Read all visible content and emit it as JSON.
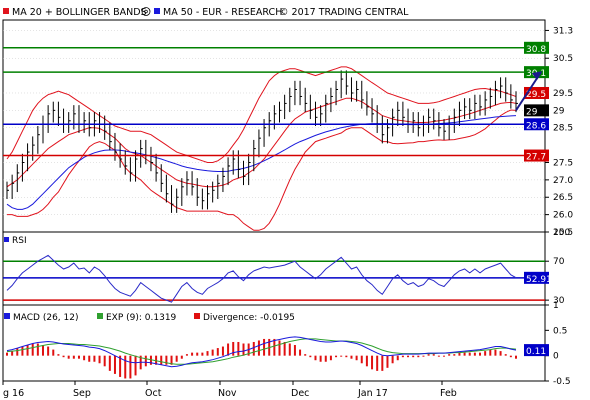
{
  "header": {
    "legend_label": "MA 20 + BOLLINGER BANDS",
    "ma50_label": "MA 50 - EUR - RESEARCH",
    "copyright": "© 2017 TRADING CENTRAL"
  },
  "colors": {
    "price": "#000000",
    "bollinger": "#e0141e",
    "ma50": "#1a1adc",
    "green": "#008000",
    "blue": "#0000c8",
    "red": "#d40000",
    "rsi": "#2a2ac8",
    "macd": "#1a1adc",
    "exp": "#30a030",
    "divergence": "#e01010",
    "grid": "#c8c8c8",
    "axis": "#000000"
  },
  "chart_data": [
    {
      "type": "ohlc",
      "panel": "price",
      "ylim": [
        25.5,
        31.6
      ],
      "yticks": [
        "31.3",
        "30.5",
        "29.5",
        "29",
        "28.5",
        "27.5",
        "27.0",
        "26.5",
        "26.0",
        "25.5"
      ],
      "grid": true,
      "months": [
        "g 16",
        "Sep",
        "Oct",
        "Nov",
        "Dec",
        "Jan 17",
        "Feb"
      ],
      "levels": [
        {
          "label": "30.8",
          "value": 30.8,
          "color": "green"
        },
        {
          "label": "30.1",
          "value": 30.1,
          "color": "green"
        },
        {
          "label": "28.6",
          "value": 28.6,
          "color": "blue"
        },
        {
          "label": "27.7",
          "value": 27.7,
          "color": "red"
        }
      ],
      "tags": [
        {
          "label": "29.5",
          "value": 29.5,
          "color": "red"
        },
        {
          "label": "29",
          "value": 29.0,
          "color": "black"
        }
      ],
      "close": [
        26.7,
        26.9,
        27.2,
        27.5,
        27.8,
        28.0,
        28.3,
        28.6,
        28.9,
        29.0,
        28.8,
        28.6,
        28.7,
        28.9,
        28.6,
        28.7,
        28.5,
        28.7,
        28.6,
        28.4,
        28.1,
        27.8,
        27.6,
        27.4,
        27.2,
        27.6,
        27.9,
        27.7,
        27.5,
        27.2,
        26.9,
        26.6,
        26.3,
        26.5,
        26.8,
        27.0,
        26.8,
        26.5,
        26.4,
        26.6,
        26.7,
        26.9,
        27.1,
        27.4,
        27.6,
        27.3,
        27.1,
        27.5,
        27.9,
        28.2,
        28.5,
        28.7,
        28.9,
        29.0,
        29.2,
        29.4,
        29.6,
        29.4,
        29.2,
        29.0,
        28.8,
        28.9,
        29.2,
        29.4,
        29.6,
        29.9,
        29.7,
        29.5,
        29.6,
        29.3,
        29.1,
        28.9,
        28.6,
        28.3,
        28.5,
        28.8,
        29.0,
        28.8,
        28.6,
        28.7,
        28.5,
        28.6,
        28.8,
        28.7,
        28.5,
        28.4,
        28.6,
        28.8,
        29.0,
        29.1,
        29.0,
        29.2,
        29.1,
        29.3,
        29.4,
        29.6,
        29.7,
        29.5,
        29.3,
        29.2
      ],
      "ma20": [
        26.8,
        26.9,
        27.0,
        27.15,
        27.3,
        27.45,
        27.6,
        27.75,
        27.9,
        28.0,
        28.1,
        28.2,
        28.3,
        28.35,
        28.4,
        28.45,
        28.5,
        28.5,
        28.48,
        28.4,
        28.3,
        28.2,
        28.05,
        27.9,
        27.8,
        27.75,
        27.7,
        27.6,
        27.5,
        27.4,
        27.3,
        27.2,
        27.1,
        27.0,
        26.95,
        26.9,
        26.88,
        26.85,
        26.82,
        26.8,
        26.8,
        26.82,
        26.85,
        26.9,
        27.0,
        27.05,
        27.1,
        27.2,
        27.3,
        27.45,
        27.6,
        27.8,
        28.0,
        28.2,
        28.4,
        28.6,
        28.75,
        28.85,
        28.95,
        29.0,
        29.05,
        29.1,
        29.15,
        29.2,
        29.25,
        29.3,
        29.35,
        29.35,
        29.3,
        29.25,
        29.15,
        29.05,
        28.95,
        28.85,
        28.8,
        28.75,
        28.72,
        28.7,
        28.68,
        28.66,
        28.65,
        28.65,
        28.66,
        28.68,
        28.7,
        28.72,
        28.75,
        28.78,
        28.82,
        28.86,
        28.9,
        28.95,
        29.0,
        29.05,
        29.1,
        29.15,
        29.2,
        29.22,
        29.23,
        29.2
      ],
      "bb_upper": [
        27.6,
        27.8,
        28.1,
        28.4,
        28.7,
        29.0,
        29.2,
        29.35,
        29.45,
        29.5,
        29.55,
        29.5,
        29.45,
        29.35,
        29.25,
        29.15,
        29.05,
        28.95,
        28.85,
        28.75,
        28.65,
        28.55,
        28.5,
        28.45,
        28.4,
        28.4,
        28.4,
        28.35,
        28.3,
        28.2,
        28.1,
        28.0,
        27.9,
        27.8,
        27.75,
        27.7,
        27.65,
        27.6,
        27.55,
        27.5,
        27.5,
        27.55,
        27.65,
        27.8,
        28.0,
        28.2,
        28.45,
        28.75,
        29.05,
        29.35,
        29.6,
        29.85,
        30.0,
        30.1,
        30.15,
        30.2,
        30.2,
        30.15,
        30.1,
        30.05,
        30.0,
        30.05,
        30.1,
        30.15,
        30.2,
        30.25,
        30.25,
        30.2,
        30.1,
        30.0,
        29.9,
        29.8,
        29.7,
        29.6,
        29.5,
        29.45,
        29.4,
        29.35,
        29.3,
        29.25,
        29.2,
        29.2,
        29.2,
        29.22,
        29.25,
        29.3,
        29.35,
        29.4,
        29.45,
        29.5,
        29.55,
        29.6,
        29.62,
        29.63,
        29.6,
        29.58,
        29.55,
        29.5,
        29.45,
        29.4
      ],
      "bb_lower": [
        26.0,
        26.0,
        25.95,
        25.95,
        25.95,
        26.0,
        26.05,
        26.15,
        26.3,
        26.5,
        26.65,
        26.9,
        27.15,
        27.35,
        27.55,
        27.75,
        27.95,
        28.05,
        28.1,
        28.05,
        27.95,
        27.85,
        27.6,
        27.35,
        27.2,
        27.1,
        27.0,
        26.85,
        26.7,
        26.6,
        26.5,
        26.4,
        26.3,
        26.2,
        26.15,
        26.1,
        26.1,
        26.1,
        26.1,
        26.1,
        26.1,
        26.1,
        26.05,
        26.0,
        26.0,
        25.9,
        25.75,
        25.65,
        25.55,
        25.55,
        25.6,
        25.75,
        26.0,
        26.3,
        26.65,
        27.0,
        27.3,
        27.55,
        27.8,
        27.95,
        28.1,
        28.15,
        28.2,
        28.25,
        28.3,
        28.35,
        28.45,
        28.5,
        28.5,
        28.5,
        28.4,
        28.3,
        28.2,
        28.1,
        28.1,
        28.05,
        28.04,
        28.05,
        28.06,
        28.07,
        28.1,
        28.1,
        28.12,
        28.14,
        28.15,
        28.14,
        28.15,
        28.16,
        28.19,
        28.22,
        28.25,
        28.3,
        28.38,
        28.47,
        28.6,
        28.72,
        28.85,
        28.94,
        29.01,
        29.0
      ],
      "ma50": [
        26.3,
        26.2,
        26.15,
        26.15,
        26.2,
        26.3,
        26.45,
        26.6,
        26.75,
        26.9,
        27.05,
        27.2,
        27.35,
        27.45,
        27.55,
        27.65,
        27.72,
        27.78,
        27.82,
        27.85,
        27.86,
        27.86,
        27.85,
        27.83,
        27.8,
        27.78,
        27.75,
        27.72,
        27.68,
        27.64,
        27.6,
        27.55,
        27.5,
        27.45,
        27.4,
        27.36,
        27.33,
        27.3,
        27.28,
        27.26,
        27.25,
        27.24,
        27.24,
        27.25,
        27.28,
        27.3,
        27.33,
        27.37,
        27.42,
        27.48,
        27.55,
        27.62,
        27.7,
        27.78,
        27.86,
        27.95,
        28.03,
        28.1,
        28.16,
        28.22,
        28.28,
        28.33,
        28.38,
        28.42,
        28.46,
        28.5,
        28.53,
        28.56,
        28.58,
        28.6,
        28.61,
        28.62,
        28.62,
        28.62,
        28.62,
        28.61,
        28.6,
        28.6,
        28.59,
        28.59,
        28.59,
        28.6,
        28.6,
        28.61,
        28.62,
        28.63,
        28.64,
        28.65,
        28.67,
        28.69,
        28.71,
        28.73,
        28.75,
        28.77,
        28.79,
        28.81,
        28.82,
        28.83,
        28.84,
        28.85
      ],
      "projection": {
        "from": 29.0,
        "to": 30.1
      }
    },
    {
      "type": "line",
      "panel": "rsi",
      "name": "RSI",
      "ylim": [
        25,
        100
      ],
      "yticks": [
        "100",
        "70",
        "30"
      ],
      "levels": [
        {
          "value": 70,
          "color": "green"
        },
        {
          "value": 52.91,
          "color": "blue"
        },
        {
          "value": 30,
          "color": "red"
        }
      ],
      "tag": {
        "label": "52.91",
        "value": 52.91
      },
      "values": [
        40,
        45,
        52,
        58,
        62,
        66,
        70,
        73,
        76,
        71,
        66,
        62,
        64,
        68,
        62,
        63,
        58,
        64,
        61,
        55,
        48,
        42,
        38,
        36,
        34,
        40,
        48,
        44,
        40,
        36,
        32,
        30,
        28,
        36,
        44,
        48,
        42,
        38,
        36,
        42,
        45,
        48,
        52,
        58,
        60,
        54,
        50,
        56,
        60,
        62,
        64,
        63,
        64,
        65,
        66,
        68,
        70,
        64,
        60,
        56,
        52,
        56,
        62,
        66,
        70,
        74,
        68,
        62,
        64,
        56,
        50,
        46,
        40,
        36,
        44,
        52,
        56,
        50,
        46,
        48,
        44,
        46,
        52,
        50,
        46,
        44,
        50,
        56,
        60,
        62,
        58,
        62,
        58,
        62,
        64,
        66,
        68,
        62,
        56,
        53
      ]
    },
    {
      "type": "line",
      "panel": "macd",
      "ylim": [
        -0.5,
        1.0
      ],
      "yticks": [
        "1",
        "0.5",
        "0",
        "-0.5"
      ],
      "legend": [
        "MACD (26, 12)",
        "EXP (9): 0.1319",
        "Divergence: -0.0195"
      ],
      "tag": {
        "label": "0.11",
        "value": 0.11
      },
      "macd": [
        0.1,
        0.12,
        0.15,
        0.18,
        0.21,
        0.24,
        0.26,
        0.27,
        0.28,
        0.27,
        0.25,
        0.23,
        0.22,
        0.21,
        0.2,
        0.19,
        0.17,
        0.16,
        0.14,
        0.1,
        0.05,
        0.0,
        -0.05,
        -0.1,
        -0.13,
        -0.14,
        -0.13,
        -0.13,
        -0.14,
        -0.16,
        -0.18,
        -0.2,
        -0.22,
        -0.21,
        -0.19,
        -0.16,
        -0.14,
        -0.13,
        -0.12,
        -0.1,
        -0.08,
        -0.05,
        -0.02,
        0.02,
        0.06,
        0.08,
        0.09,
        0.12,
        0.16,
        0.2,
        0.24,
        0.27,
        0.3,
        0.32,
        0.34,
        0.36,
        0.37,
        0.36,
        0.34,
        0.32,
        0.3,
        0.28,
        0.27,
        0.27,
        0.28,
        0.29,
        0.28,
        0.26,
        0.24,
        0.2,
        0.15,
        0.1,
        0.05,
        0.01,
        0.0,
        0.01,
        0.02,
        0.03,
        0.03,
        0.03,
        0.03,
        0.04,
        0.05,
        0.05,
        0.05,
        0.05,
        0.06,
        0.07,
        0.08,
        0.09,
        0.1,
        0.11,
        0.12,
        0.14,
        0.16,
        0.18,
        0.18,
        0.16,
        0.13,
        0.11
      ],
      "exp": [
        0.08,
        0.09,
        0.1,
        0.12,
        0.14,
        0.16,
        0.18,
        0.2,
        0.22,
        0.23,
        0.24,
        0.24,
        0.24,
        0.23,
        0.22,
        0.22,
        0.21,
        0.2,
        0.19,
        0.17,
        0.15,
        0.12,
        0.09,
        0.05,
        0.02,
        -0.01,
        -0.04,
        -0.06,
        -0.08,
        -0.1,
        -0.12,
        -0.14,
        -0.16,
        -0.17,
        -0.17,
        -0.17,
        -0.16,
        -0.15,
        -0.14,
        -0.13,
        -0.12,
        -0.1,
        -0.08,
        -0.06,
        -0.03,
        -0.01,
        0.01,
        0.04,
        0.07,
        0.1,
        0.13,
        0.16,
        0.19,
        0.22,
        0.25,
        0.28,
        0.3,
        0.32,
        0.33,
        0.33,
        0.33,
        0.32,
        0.31,
        0.3,
        0.29,
        0.29,
        0.29,
        0.28,
        0.27,
        0.25,
        0.22,
        0.19,
        0.15,
        0.11,
        0.08,
        0.06,
        0.05,
        0.04,
        0.04,
        0.04,
        0.04,
        0.04,
        0.04,
        0.04,
        0.05,
        0.05,
        0.05,
        0.06,
        0.06,
        0.07,
        0.08,
        0.09,
        0.1,
        0.11,
        0.12,
        0.14,
        0.15,
        0.15,
        0.14,
        0.13
      ]
    }
  ]
}
